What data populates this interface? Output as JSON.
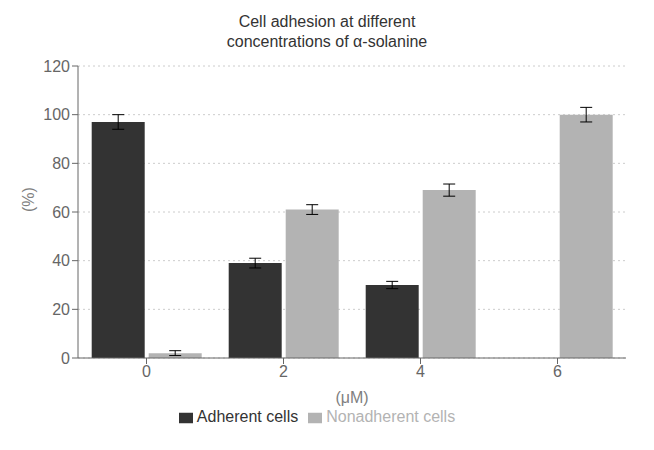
{
  "chart_data": {
    "type": "bar",
    "title": "Cell adhesion at different\nconcentrations of α-solanine",
    "xlabel": "(μM)",
    "ylabel": "(%)",
    "categories": [
      "0",
      "2",
      "4",
      "6"
    ],
    "series": [
      {
        "name": "Adherent cells",
        "color": "#333333",
        "values": [
          97,
          39,
          30,
          0
        ],
        "errors": [
          3,
          2,
          1.5,
          0
        ]
      },
      {
        "name": "Nonadherent cells",
        "color": "#b3b3b3",
        "values": [
          2,
          61,
          69,
          100
        ],
        "errors": [
          1,
          2,
          2.5,
          3
        ]
      }
    ],
    "ylim": [
      0,
      120
    ],
    "yticks": [
      0,
      20,
      40,
      60,
      80,
      100,
      120
    ],
    "grid": true,
    "legend": "bottom"
  }
}
